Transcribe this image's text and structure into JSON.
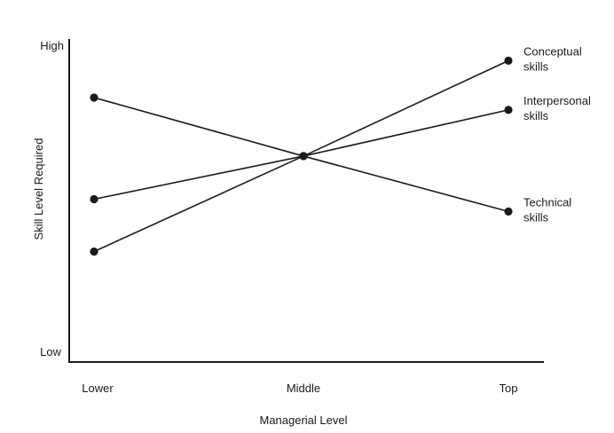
{
  "chart_data": {
    "type": "line",
    "title": "",
    "xlabel": "Managerial Level",
    "ylabel": "Skill Level Required",
    "categories": [
      "Lower",
      "Middle",
      "Top"
    ],
    "y_tick_labels": {
      "low": "Low",
      "high": "High"
    },
    "ylim": [
      0,
      100
    ],
    "grid": false,
    "legend": "none (series labeled at right end of lines)",
    "series": [
      {
        "name": "Conceptual skills",
        "label_lines": [
          "Conceptual",
          "skills"
        ],
        "values": [
          33,
          64,
          95
        ]
      },
      {
        "name": "Interpersonal skills",
        "label_lines": [
          "Interpersonal",
          "skills"
        ],
        "values": [
          50,
          64,
          79
        ]
      },
      {
        "name": "Technical skills",
        "label_lines": [
          "Technical",
          "skills"
        ],
        "values": [
          83,
          64,
          46
        ]
      }
    ],
    "colors": {
      "ink": "#1a1a1a",
      "background": "#ffffff"
    }
  }
}
